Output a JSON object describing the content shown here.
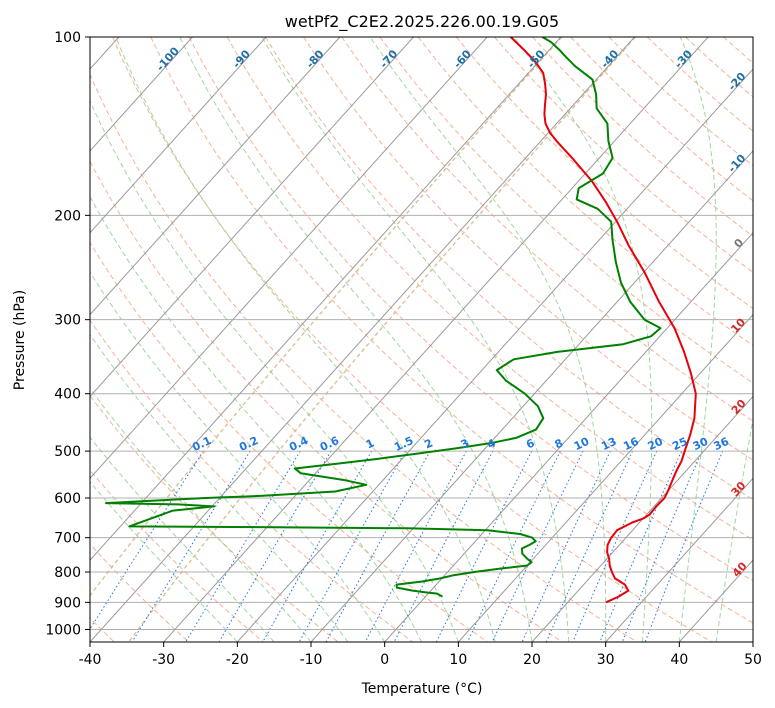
{
  "chart_data": {
    "type": "line",
    "title": "wetPf2_C2E2.2025.226.00.19.G05",
    "xlabel": "Temperature (°C)",
    "ylabel": "Pressure (hPa)",
    "xlim": [
      -40,
      50
    ],
    "ylim": [
      1050,
      100
    ],
    "y_scale": "log",
    "grid": true,
    "x_ticks": [
      -40,
      -30,
      -20,
      -10,
      0,
      10,
      20,
      30,
      40,
      50
    ],
    "y_ticks": [
      100,
      200,
      300,
      400,
      500,
      600,
      700,
      800,
      900,
      1000
    ],
    "skew_reference": {
      "temperature": -40,
      "pressure": 100
    },
    "colors": {
      "temperature": "#e8000b",
      "dewpoint": "#008000",
      "isotherm": "#9a9a9a",
      "dry_adiabat": "#f4a582",
      "moist_adiabat": "#8fcf8f",
      "mixing_ratio": "#1f77e0",
      "isotherm_label_neg": "#1f6fa8",
      "isotherm_label_pos": "#d62728",
      "isotherm_label_zero": "#777777",
      "ice_curve": "#d8b98a"
    },
    "isotherm_labels": {
      "negative": [
        -100,
        -90,
        -80,
        -70,
        -60,
        -50,
        -40,
        -30,
        -20,
        -10
      ],
      "zero": [
        0
      ],
      "positive": [
        10,
        20,
        30,
        40
      ]
    },
    "mixing_ratio_labels": [
      "0.1",
      "0.2",
      "0.4",
      "0.6",
      "1",
      "1.5",
      "2",
      "3",
      "4",
      "6",
      "8",
      "10",
      "13",
      "16",
      "20",
      "25",
      "30",
      "36"
    ],
    "mixing_ratio_values": [
      0.1,
      0.2,
      0.4,
      0.6,
      1,
      1.5,
      2,
      3,
      4,
      6,
      8,
      10,
      13,
      16,
      20,
      25,
      30,
      36
    ],
    "series": [
      {
        "key": "temperature",
        "points": [
          [
            900,
            25.2
          ],
          [
            880,
            26.2
          ],
          [
            860,
            26.8
          ],
          [
            840,
            25.6
          ],
          [
            820,
            23.5
          ],
          [
            800,
            22.3
          ],
          [
            780,
            21.2
          ],
          [
            760,
            20.3
          ],
          [
            740,
            19.2
          ],
          [
            720,
            18.4
          ],
          [
            700,
            18.0
          ],
          [
            680,
            17.9
          ],
          [
            660,
            19.0
          ],
          [
            650,
            20.0
          ],
          [
            640,
            20.4
          ],
          [
            620,
            20.3
          ],
          [
            600,
            20.4
          ],
          [
            580,
            19.9
          ],
          [
            560,
            19.3
          ],
          [
            540,
            18.7
          ],
          [
            520,
            18.2
          ],
          [
            500,
            17.4
          ],
          [
            470,
            16.2
          ],
          [
            440,
            14.7
          ],
          [
            400,
            11.9
          ],
          [
            370,
            8.8
          ],
          [
            340,
            5.2
          ],
          [
            310,
            1.0
          ],
          [
            280,
            -4.3
          ],
          [
            250,
            -9.8
          ],
          [
            225,
            -15.3
          ],
          [
            205,
            -19.8
          ],
          [
            190,
            -23.7
          ],
          [
            175,
            -28.2
          ],
          [
            160,
            -33.7
          ],
          [
            150,
            -37.8
          ],
          [
            145,
            -39.8
          ],
          [
            140,
            -41.5
          ],
          [
            135,
            -42.8
          ],
          [
            130,
            -43.9
          ],
          [
            125,
            -45.0
          ],
          [
            120,
            -46.4
          ],
          [
            115,
            -48.0
          ],
          [
            110,
            -50.5
          ],
          [
            105,
            -53.5
          ],
          [
            100,
            -56.8
          ]
        ]
      },
      {
        "key": "dewpoint",
        "points": [
          [
            880,
            2.3
          ],
          [
            870,
            1.2
          ],
          [
            865,
            -0.8
          ],
          [
            860,
            -2.5
          ],
          [
            850,
            -5.0
          ],
          [
            840,
            -5.4
          ],
          [
            830,
            -2.3
          ],
          [
            820,
            -0.2
          ],
          [
            810,
            1.2
          ],
          [
            800,
            3.6
          ],
          [
            790,
            6.6
          ],
          [
            780,
            10.0
          ],
          [
            770,
            10.2
          ],
          [
            760,
            9.2
          ],
          [
            745,
            7.9
          ],
          [
            730,
            7.2
          ],
          [
            720,
            7.8
          ],
          [
            710,
            8.2
          ],
          [
            700,
            7.3
          ],
          [
            690,
            5.2
          ],
          [
            680,
            0.3
          ],
          [
            675,
            -10.8
          ],
          [
            672,
            -28.8
          ],
          [
            670,
            -48.8
          ],
          [
            630,
            -44.8
          ],
          [
            620,
            -39.7
          ],
          [
            615,
            -44.9
          ],
          [
            612,
            -54.8
          ],
          [
            600,
            -41.9
          ],
          [
            595,
            -34.7
          ],
          [
            585,
            -25.1
          ],
          [
            570,
            -21.7
          ],
          [
            560,
            -25.1
          ],
          [
            545,
            -32.0
          ],
          [
            535,
            -33.4
          ],
          [
            525,
            -28.3
          ],
          [
            515,
            -23.2
          ],
          [
            505,
            -18.7
          ],
          [
            495,
            -14.1
          ],
          [
            485,
            -10.0
          ],
          [
            475,
            -7.1
          ],
          [
            460,
            -5.4
          ],
          [
            440,
            -5.8
          ],
          [
            420,
            -8.0
          ],
          [
            400,
            -11.3
          ],
          [
            380,
            -15.5
          ],
          [
            365,
            -18.0
          ],
          [
            350,
            -17.0
          ],
          [
            340,
            -12.0
          ],
          [
            330,
            -4.0
          ],
          [
            320,
            -1.2
          ],
          [
            310,
            -0.9
          ],
          [
            300,
            -4.1
          ],
          [
            280,
            -8.2
          ],
          [
            260,
            -11.8
          ],
          [
            240,
            -15.0
          ],
          [
            220,
            -18.2
          ],
          [
            205,
            -20.6
          ],
          [
            195,
            -24.0
          ],
          [
            188,
            -28.0
          ],
          [
            180,
            -29.1
          ],
          [
            170,
            -27.6
          ],
          [
            160,
            -28.2
          ],
          [
            150,
            -30.8
          ],
          [
            140,
            -33.1
          ],
          [
            132,
            -36.4
          ],
          [
            125,
            -38.2
          ],
          [
            118,
            -40.5
          ],
          [
            112,
            -44.5
          ],
          [
            108,
            -46.9
          ],
          [
            105,
            -48.7
          ],
          [
            102,
            -50.7
          ],
          [
            100,
            -52.5
          ]
        ]
      }
    ]
  }
}
